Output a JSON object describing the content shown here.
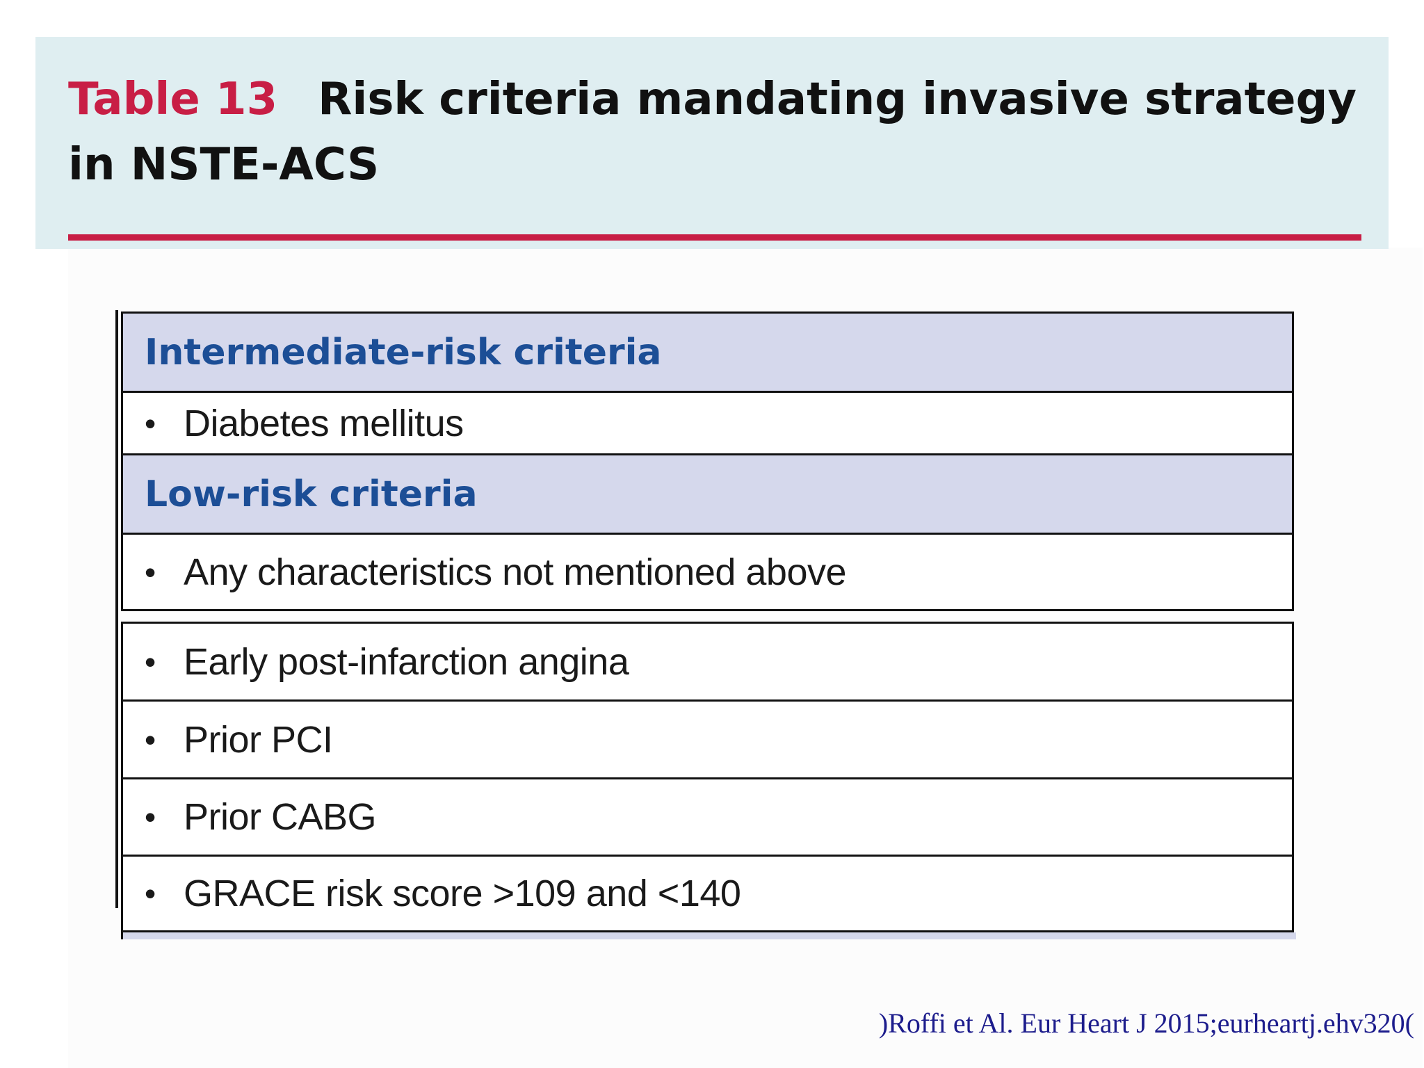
{
  "title": {
    "table_number": "Table 13",
    "text": "Risk criteria mandating invasive strategy in NSTE-ACS"
  },
  "table": {
    "intermediate_header": "Intermediate-risk criteria",
    "intermediate_items": [
      "Diabetes mellitus"
    ],
    "low_header": "Low-risk criteria",
    "low_items": [
      "Any characteristics not mentioned above"
    ],
    "bullet": "•",
    "extra_items": [
      "Early post-infarction angina",
      "Prior PCI",
      "Prior CABG",
      "GRACE risk score >109 and <140"
    ]
  },
  "citation": ")Roffi et Al. Eur Heart J 2015;eurheartj.ehv320(",
  "colors": {
    "accent_red": "#c81e45",
    "header_band": "#dfeef1",
    "section_header_bg": "#d5d8ec",
    "section_header_text": "#1c4e96",
    "citation_text": "#1c1c8c"
  }
}
